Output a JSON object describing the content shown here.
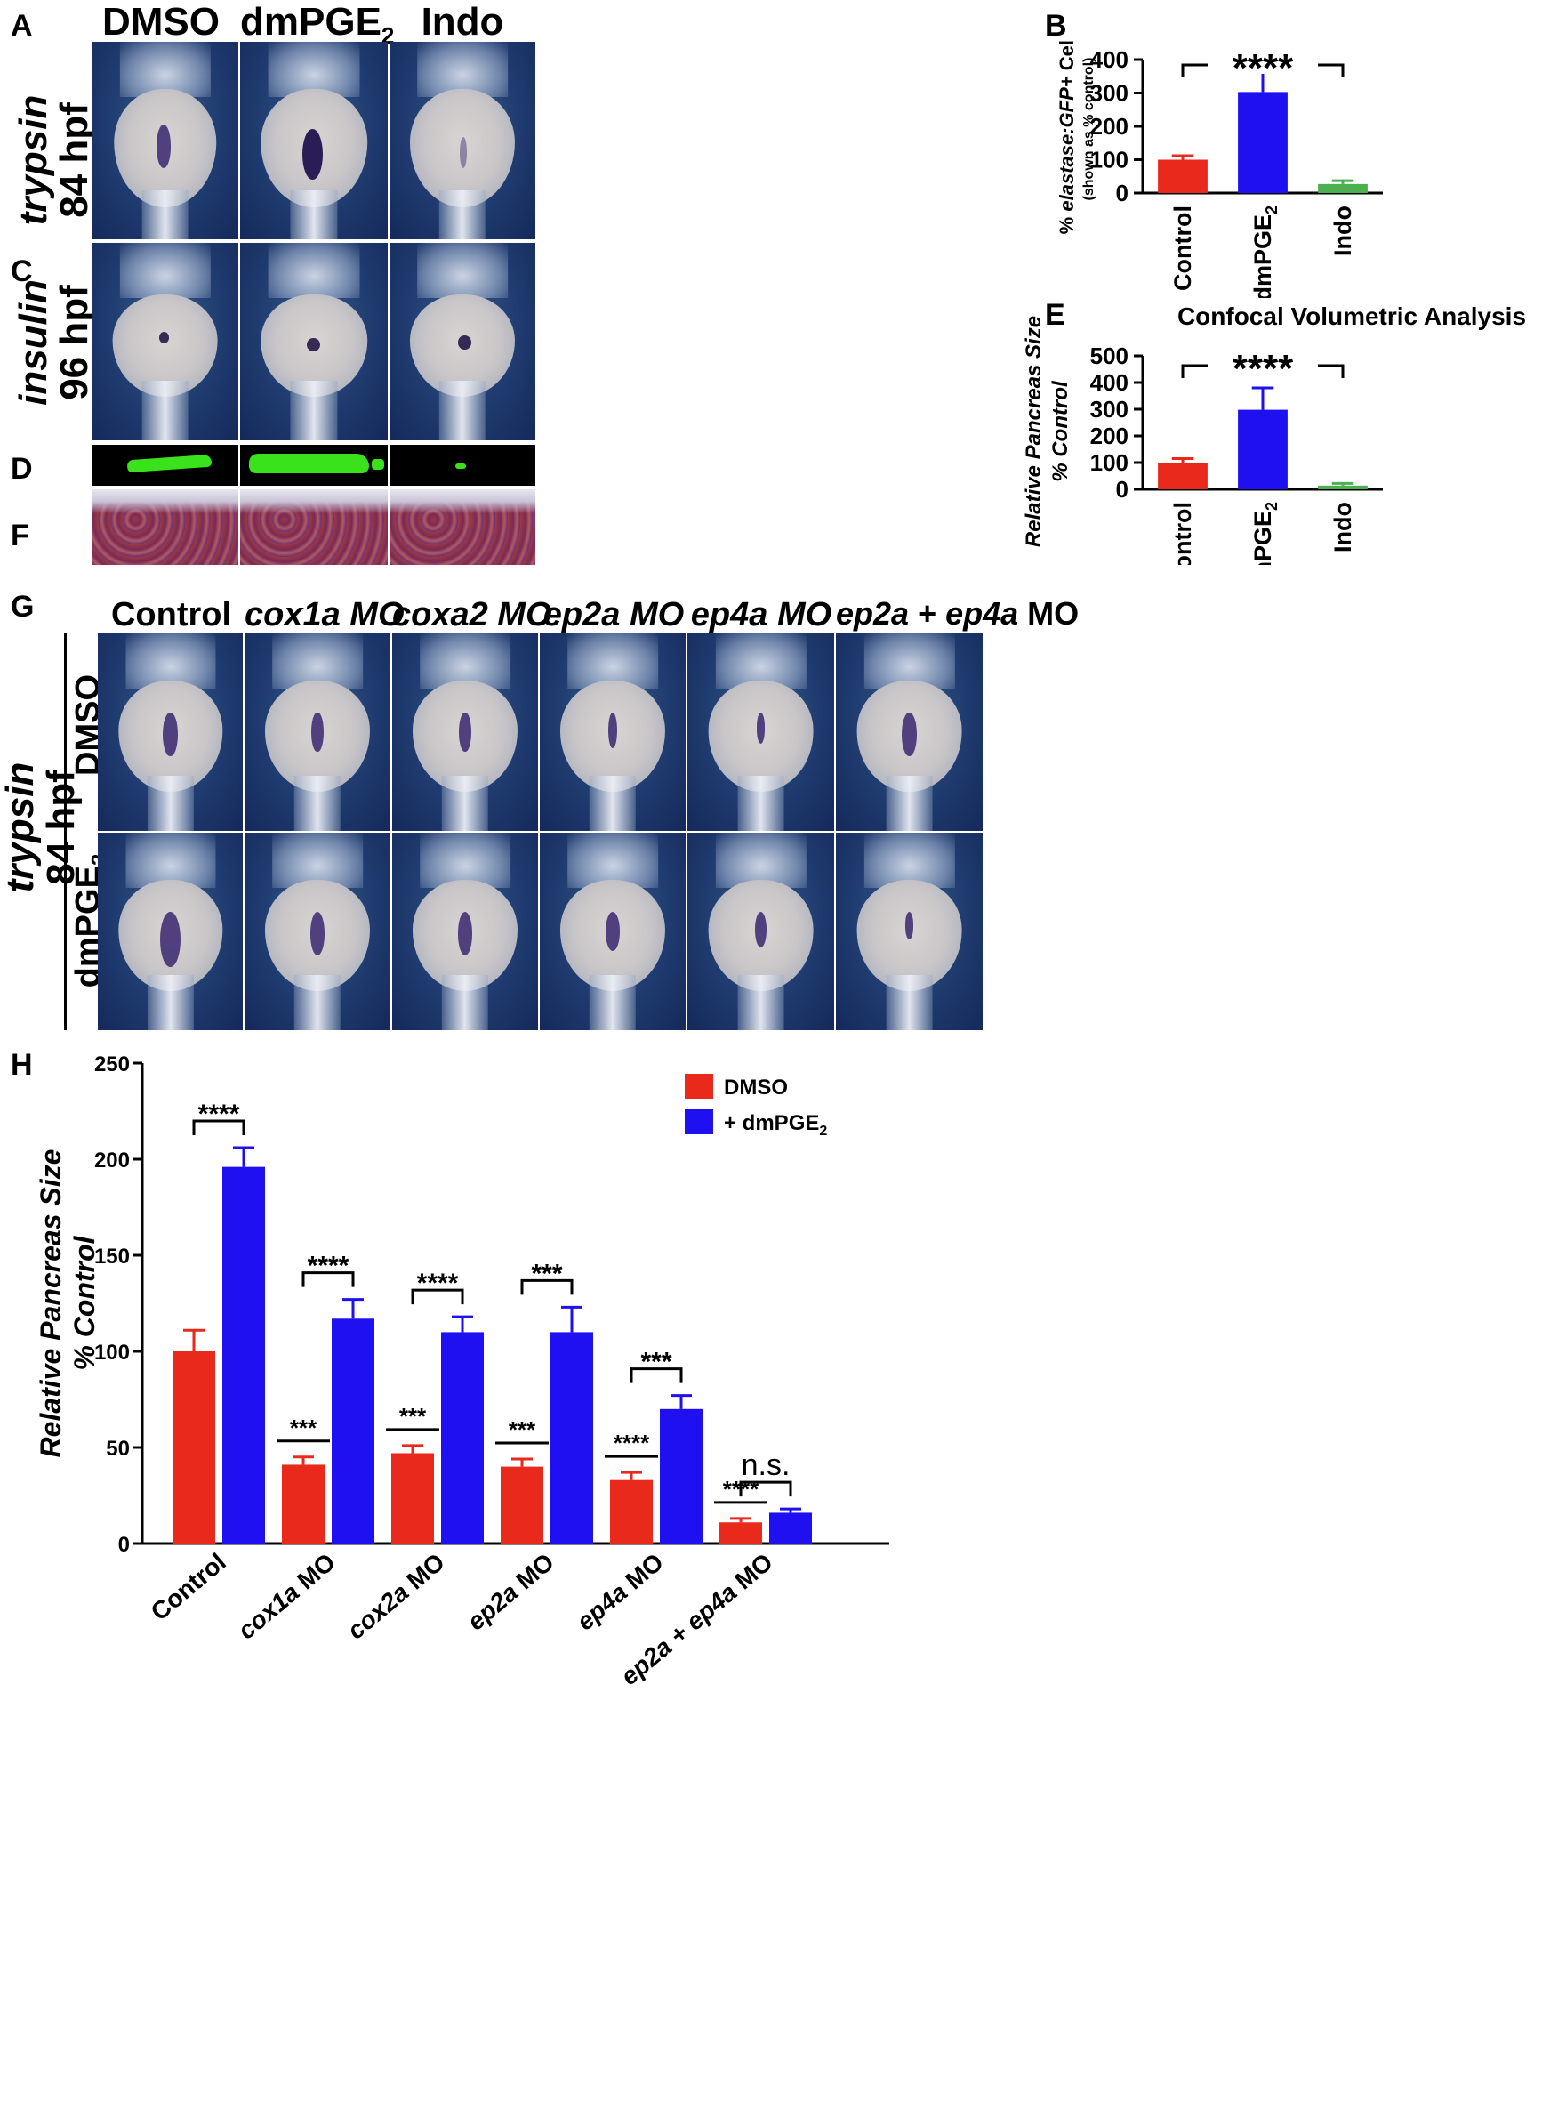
{
  "panels": {
    "A": "A",
    "B": "B",
    "C": "C",
    "D": "D",
    "E": "E",
    "F": "F",
    "G": "G",
    "H": "H"
  },
  "top_columns": [
    "DMSO",
    "dmPGE",
    "Indo"
  ],
  "top_column_sub": "2",
  "row_trypsin": {
    "gene": "trypsin",
    "stage": "84 hpf"
  },
  "row_insulin": {
    "gene": "insulin",
    "stage": "96 hpf"
  },
  "g_columns": {
    "control": "Control",
    "cox1a": "cox1a MO",
    "coxa2": "coxa2 MO",
    "ep2a": "ep2a MO",
    "ep4a": "ep4a MO",
    "ep2a_ep4a": {
      "a": "ep2a",
      "plus": " + ",
      "b": "ep4a",
      "mo": " MO"
    }
  },
  "g_rows": {
    "dmso": "DMSO",
    "dmpge": "dmPGE",
    "sub": "2"
  },
  "g_row_group": {
    "gene": "trypsin",
    "stage": "84 hpf"
  },
  "chart_data": [
    {
      "id": "B",
      "type": "bar",
      "ylabel_parts": {
        "pre": "% ",
        "ital": "elastase:GFP+",
        "post": " Cells"
      },
      "ylabel_sub": "(shown as % control)",
      "categories": [
        "Control",
        "dmPGE",
        "Indo"
      ],
      "category_sub": [
        "",
        "2",
        ""
      ],
      "values": [
        100,
        303,
        27
      ],
      "errors": [
        12,
        62,
        10
      ],
      "colors": [
        "#e8291c",
        "#1e10f0",
        "#4caf50"
      ],
      "ylim": [
        0,
        400
      ],
      "yticks": [
        0,
        100,
        200,
        300,
        400
      ],
      "significance": "****"
    },
    {
      "id": "E",
      "type": "bar",
      "title": "Confocal Volumetric Analysis",
      "ylabel_line1": "Relative Pancreas Size",
      "ylabel_line2": "% Control",
      "categories": [
        "Control",
        "dmPGE",
        "Indo"
      ],
      "category_sub": [
        "",
        "2",
        ""
      ],
      "values": [
        100,
        298,
        14
      ],
      "errors": [
        15,
        82,
        8
      ],
      "colors": [
        "#e8291c",
        "#1e10f0",
        "#4caf50"
      ],
      "ylim": [
        0,
        500
      ],
      "yticks": [
        0,
        100,
        200,
        300,
        400,
        500
      ],
      "significance": "****"
    },
    {
      "id": "H",
      "type": "bar",
      "ylabel_line1": "Relative Pancreas Size",
      "ylabel_line2": "% Control",
      "categories": [
        {
          "ital": "",
          "rest": "Control"
        },
        {
          "ital": "cox1a",
          "rest": " MO"
        },
        {
          "ital": "cox2a",
          "rest": " MO"
        },
        {
          "ital": "ep2a",
          "rest": " MO"
        },
        {
          "ital": "ep4a",
          "rest": " MO"
        },
        {
          "ital": "ep2a + ep4a",
          "rest": " MO"
        }
      ],
      "series": [
        {
          "name": "DMSO",
          "color": "#e8291c",
          "values": [
            100,
            41,
            47,
            40,
            33,
            11
          ],
          "errors": [
            11,
            4,
            4,
            4,
            4,
            2
          ]
        },
        {
          "name": "+ dmPGE",
          "name_sub": "2",
          "color": "#1e10f0",
          "values": [
            196,
            117,
            110,
            110,
            70,
            16
          ],
          "errors": [
            10,
            10,
            8,
            13,
            7,
            2
          ]
        }
      ],
      "ylim": [
        0,
        250
      ],
      "yticks": [
        0,
        50,
        100,
        150,
        200,
        250
      ],
      "pair_significance": [
        "****",
        "****",
        "****",
        "***",
        "***",
        "n.s."
      ],
      "vs_control_significance": [
        "",
        "***",
        "***",
        "***",
        "****",
        "****"
      ]
    }
  ],
  "colors": {
    "stain": "#3a2670",
    "background_blue": "#1f3b6f",
    "gfp": "#39e21b"
  }
}
